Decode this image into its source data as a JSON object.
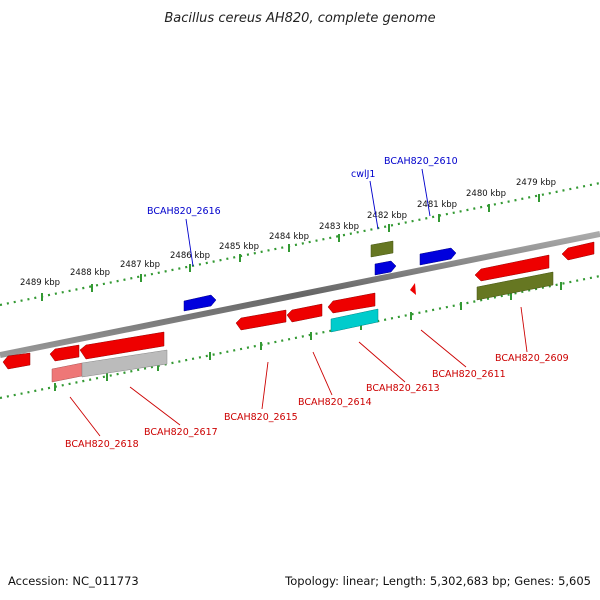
{
  "title": "Bacillus cereus AH820, complete genome",
  "footer": {
    "accession": "Accession: NC_011773",
    "topology": "Topology: linear; Length: 5,302,683 bp; Genes: 5,605"
  },
  "ticks": [
    "2489 kbp",
    "2488 kbp",
    "2487 kbp",
    "2486 kbp",
    "2485 kbp",
    "2484 kbp",
    "2483 kbp",
    "2482 kbp",
    "2481 kbp",
    "2480 kbp",
    "2479 kbp"
  ],
  "genes_top": [
    "BCAH820_2616",
    "cwlJ1",
    "BCAH820_2610"
  ],
  "genes_bottom": [
    "BCAH820_2618",
    "BCAH820_2617",
    "BCAH820_2615",
    "BCAH820_2614",
    "BCAH820_2613",
    "BCAH820_2611",
    "BCAH820_2609"
  ],
  "colors": {
    "forward": "#0000dd",
    "reverse": "#ee0000",
    "rna": "#00cccc",
    "pseudo": "#99aa33",
    "backbone": "#777777"
  }
}
